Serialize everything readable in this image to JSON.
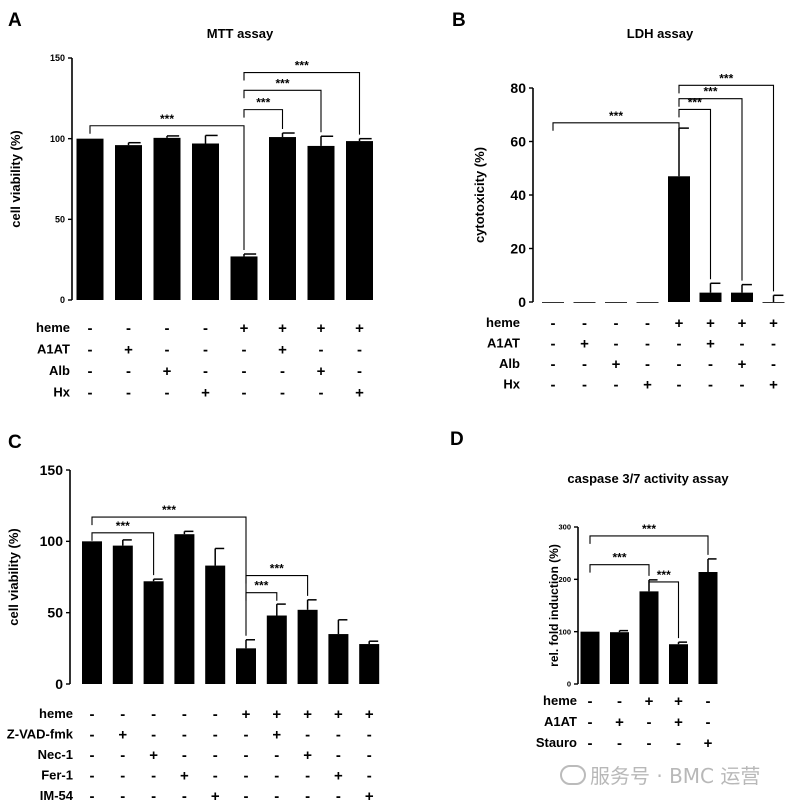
{
  "watermark": "服务号 · BMC 运营",
  "chart_data": [
    {
      "type": "bar",
      "panel": "A",
      "title": "MTT assay",
      "ylabel": "cell viability (%)",
      "ylim": [
        0,
        150
      ],
      "yticks": [
        0,
        50,
        100,
        150
      ],
      "values": [
        100,
        96,
        100.5,
        97,
        27,
        101,
        95.5,
        98.5
      ],
      "errors": [
        0,
        1.5,
        1.2,
        5,
        1.5,
        2.5,
        6,
        1.5
      ],
      "treatment_table": [
        {
          "label": "heme",
          "signs": [
            "-",
            "-",
            "-",
            "-",
            "+",
            "+",
            "+",
            "+"
          ]
        },
        {
          "label": "A1AT",
          "signs": [
            "-",
            "+",
            "-",
            "-",
            "-",
            "+",
            "-",
            "-"
          ]
        },
        {
          "label": "Alb",
          "signs": [
            "-",
            "-",
            "+",
            "-",
            "-",
            "-",
            "+",
            "-"
          ]
        },
        {
          "label": "Hx",
          "signs": [
            "-",
            "-",
            "-",
            "+",
            "-",
            "-",
            "-",
            "+"
          ]
        }
      ],
      "significance": [
        {
          "from": 0,
          "to": 4,
          "y": 108,
          "label": "***"
        },
        {
          "from": 4,
          "to": 5,
          "y": 118,
          "label": "***"
        },
        {
          "from": 4,
          "to": 6,
          "y": 130,
          "label": "***"
        },
        {
          "from": 4,
          "to": 7,
          "y": 141,
          "label": "***"
        }
      ]
    },
    {
      "type": "bar",
      "panel": "B",
      "title": "LDH assay",
      "ylabel": "cytotoxicity (%)",
      "ylim": [
        0,
        80
      ],
      "yticks": [
        0,
        20,
        40,
        60,
        80
      ],
      "values": [
        0,
        0,
        0,
        0,
        47,
        3.5,
        3.5,
        0
      ],
      "errors": [
        0,
        0,
        0,
        0,
        18,
        3.5,
        3,
        2.5
      ],
      "treatment_table": [
        {
          "label": "heme",
          "signs": [
            "-",
            "-",
            "-",
            "-",
            "+",
            "+",
            "+",
            "+"
          ]
        },
        {
          "label": "A1AT",
          "signs": [
            "-",
            "+",
            "-",
            "-",
            "-",
            "+",
            "-",
            "-"
          ]
        },
        {
          "label": "Alb",
          "signs": [
            "-",
            "-",
            "+",
            "-",
            "-",
            "-",
            "+",
            "-"
          ]
        },
        {
          "label": "Hx",
          "signs": [
            "-",
            "-",
            "-",
            "+",
            "-",
            "-",
            "-",
            "+"
          ]
        }
      ],
      "significance": [
        {
          "from": 0,
          "to": 4,
          "y": 67,
          "label": "***"
        },
        {
          "from": 4,
          "to": 5,
          "y": 72,
          "label": "***"
        },
        {
          "from": 4,
          "to": 6,
          "y": 76,
          "label": "***"
        },
        {
          "from": 4,
          "to": 7,
          "y": 81,
          "label": "***"
        }
      ]
    },
    {
      "type": "bar",
      "panel": "C",
      "title": "",
      "ylabel": "cell viability (%)",
      "ylim": [
        0,
        150
      ],
      "yticks": [
        0,
        50,
        100,
        150
      ],
      "values": [
        100,
        97,
        72,
        105,
        83,
        25,
        48,
        52,
        35,
        28
      ],
      "errors": [
        0,
        4,
        1.5,
        2,
        12,
        6,
        8,
        7,
        10,
        2
      ],
      "treatment_table": [
        {
          "label": "heme",
          "signs": [
            "-",
            "-",
            "-",
            "-",
            "-",
            "+",
            "+",
            "+",
            "+",
            "+"
          ]
        },
        {
          "label": "Z-VAD-fmk",
          "signs": [
            "-",
            "+",
            "-",
            "-",
            "-",
            "-",
            "+",
            "-",
            "-",
            "-"
          ]
        },
        {
          "label": "Nec-1",
          "signs": [
            "-",
            "-",
            "+",
            "-",
            "-",
            "-",
            "-",
            "+",
            "-",
            "-"
          ]
        },
        {
          "label": "Fer-1",
          "signs": [
            "-",
            "-",
            "-",
            "+",
            "-",
            "-",
            "-",
            "-",
            "+",
            "-"
          ]
        },
        {
          "label": "IM-54",
          "signs": [
            "-",
            "-",
            "-",
            "-",
            "+",
            "-",
            "-",
            "-",
            "-",
            "+"
          ]
        }
      ],
      "significance": [
        {
          "from": 0,
          "to": 2,
          "y": 106,
          "label": "***"
        },
        {
          "from": 0,
          "to": 5,
          "y": 117,
          "label": "***"
        },
        {
          "from": 5,
          "to": 6,
          "y": 64,
          "label": "***"
        },
        {
          "from": 5,
          "to": 7,
          "y": 76,
          "label": "***"
        }
      ]
    },
    {
      "type": "bar",
      "panel": "D",
      "title": "caspase 3/7 activity assay",
      "ylabel": "rel. fold induction (%)",
      "ylim": [
        0,
        300
      ],
      "yticks": [
        0,
        100,
        200,
        300
      ],
      "values": [
        100,
        99,
        177,
        76,
        214
      ],
      "errors": [
        0,
        3,
        22,
        4,
        25
      ],
      "treatment_table": [
        {
          "label": "heme",
          "signs": [
            "-",
            "-",
            "+",
            "+",
            "-"
          ]
        },
        {
          "label": "A1AT",
          "signs": [
            "-",
            "+",
            "-",
            "+",
            "-"
          ]
        },
        {
          "label": "Stauro",
          "signs": [
            "-",
            "-",
            "-",
            "-",
            "+"
          ]
        }
      ],
      "significance": [
        {
          "from": 0,
          "to": 2,
          "y": 228,
          "label": "***"
        },
        {
          "from": 2,
          "to": 3,
          "y": 195,
          "label": "***"
        },
        {
          "from": 0,
          "to": 4,
          "y": 283,
          "label": "***"
        }
      ]
    }
  ],
  "panels": {
    "A": {
      "letter": "A"
    },
    "B": {
      "letter": "B"
    },
    "C": {
      "letter": "C"
    },
    "D": {
      "letter": "D"
    }
  }
}
